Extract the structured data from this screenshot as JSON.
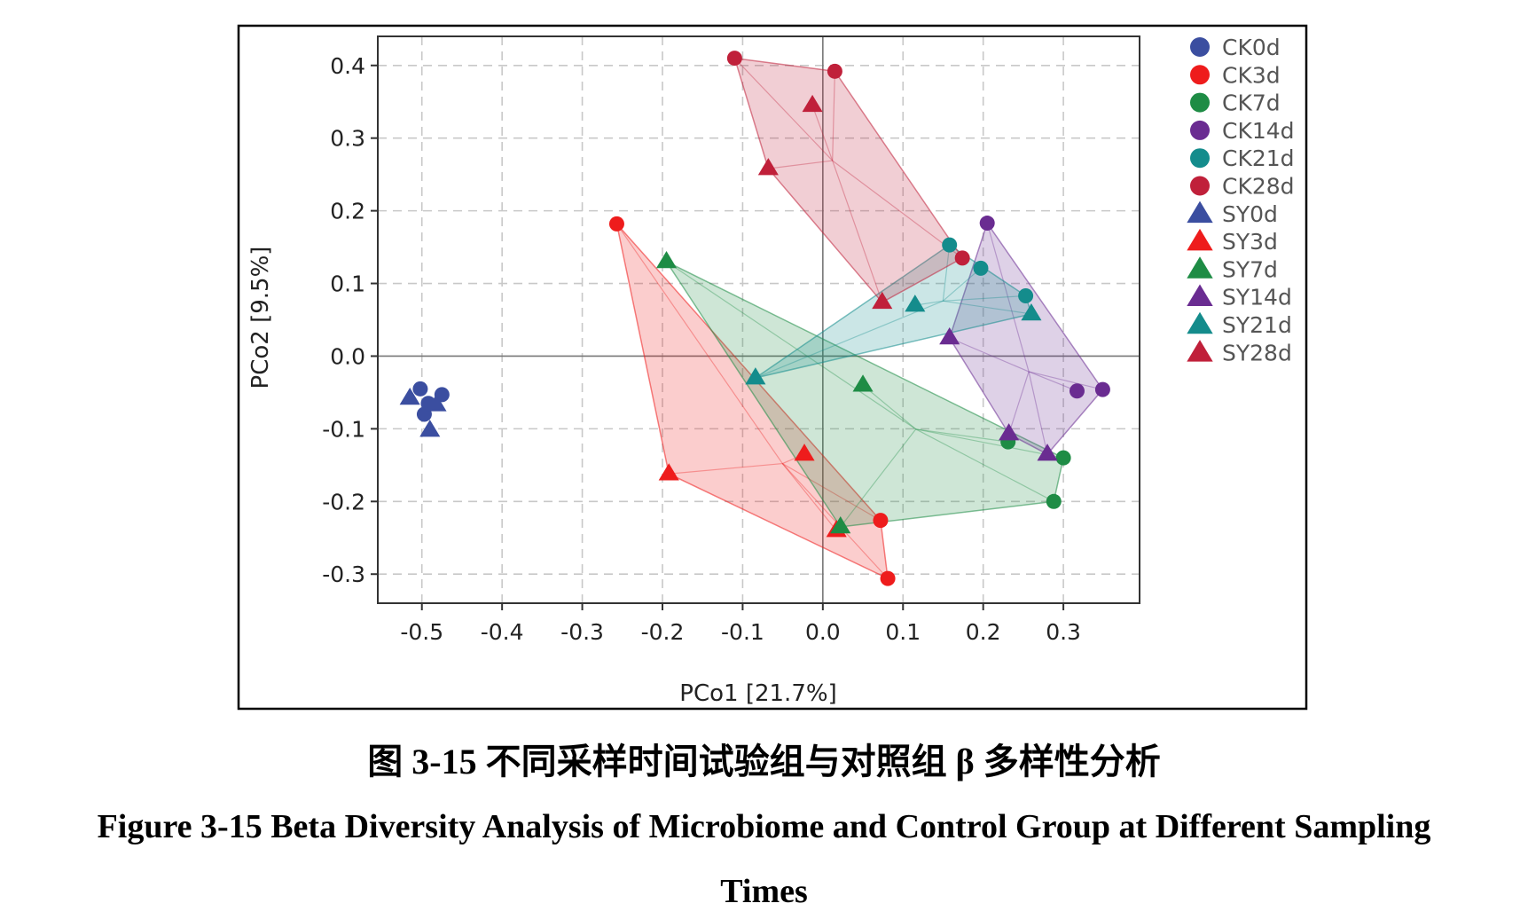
{
  "caption": {
    "cn": "图 3-15  不同采样时间试验组与对照组 β 多样性分析",
    "en_line1": "Figure 3-15 Beta Diversity Analysis of Microbiome and Control Group at Different Sampling",
    "en_line2": "Times"
  },
  "chart_data": {
    "type": "scatter",
    "xlabel": "PCo1 [21.7%]",
    "ylabel": "PCo2 [9.5%]",
    "xlim": [
      -0.555,
      0.395
    ],
    "ylim": [
      -0.34,
      0.44
    ],
    "xticks": [
      -0.5,
      -0.4,
      -0.3,
      -0.2,
      -0.1,
      0.0,
      0.1,
      0.2,
      0.3
    ],
    "xtick_labels": [
      "-0.5",
      "-0.4",
      "-0.3",
      "-0.2",
      "-0.1",
      "0.0",
      "0.1",
      "0.2",
      "0.3"
    ],
    "yticks": [
      -0.3,
      -0.2,
      -0.1,
      0.0,
      0.1,
      0.2,
      0.3,
      0.4
    ],
    "ytick_labels": [
      "-0.3",
      "-0.2",
      "-0.1",
      "0.0",
      "0.1",
      "0.2",
      "0.3",
      "0.4"
    ],
    "grid": true,
    "zero_lines": true,
    "legend_position": "right",
    "series": [
      {
        "name": "CK0d",
        "marker": "circle",
        "color": "#3b4ea0",
        "points": [
          [
            -0.502,
            -0.045
          ],
          [
            -0.475,
            -0.053
          ],
          [
            -0.492,
            -0.065
          ],
          [
            -0.497,
            -0.08
          ]
        ]
      },
      {
        "name": "CK3d",
        "marker": "circle",
        "color": "#ee1c1c",
        "points": [
          [
            -0.257,
            0.182
          ],
          [
            0.072,
            -0.226
          ],
          [
            0.081,
            -0.306
          ]
        ]
      },
      {
        "name": "CK7d",
        "marker": "circle",
        "color": "#1e8c45",
        "points": [
          [
            0.231,
            -0.118
          ],
          [
            0.3,
            -0.14
          ],
          [
            0.288,
            -0.2
          ]
        ]
      },
      {
        "name": "CK14d",
        "marker": "circle",
        "color": "#6a2c91",
        "points": [
          [
            0.205,
            0.183
          ],
          [
            0.317,
            -0.048
          ],
          [
            0.349,
            -0.046
          ]
        ]
      },
      {
        "name": "CK21d",
        "marker": "circle",
        "color": "#148c8c",
        "points": [
          [
            0.158,
            0.153
          ],
          [
            0.197,
            0.121
          ],
          [
            0.253,
            0.083
          ]
        ]
      },
      {
        "name": "CK28d",
        "marker": "circle",
        "color": "#c0203a",
        "points": [
          [
            -0.11,
            0.41
          ],
          [
            0.015,
            0.392
          ],
          [
            0.174,
            0.135
          ]
        ]
      },
      {
        "name": "SY0d",
        "marker": "triangle",
        "color": "#3b4ea0",
        "points": [
          [
            -0.515,
            -0.058
          ],
          [
            -0.482,
            -0.067
          ],
          [
            -0.49,
            -0.102
          ]
        ]
      },
      {
        "name": "SY3d",
        "marker": "triangle",
        "color": "#ee1c1c",
        "points": [
          [
            -0.192,
            -0.162
          ],
          [
            -0.023,
            -0.135
          ],
          [
            0.017,
            -0.24
          ]
        ]
      },
      {
        "name": "SY7d",
        "marker": "triangle",
        "color": "#1e8c45",
        "points": [
          [
            -0.195,
            0.13
          ],
          [
            0.05,
            -0.04
          ],
          [
            0.022,
            -0.235
          ]
        ]
      },
      {
        "name": "SY14d",
        "marker": "triangle",
        "color": "#6a2c91",
        "points": [
          [
            0.158,
            0.025
          ],
          [
            0.232,
            -0.107
          ],
          [
            0.28,
            -0.135
          ]
        ]
      },
      {
        "name": "SY21d",
        "marker": "triangle",
        "color": "#148c8c",
        "points": [
          [
            -0.084,
            -0.03
          ],
          [
            0.115,
            0.07
          ],
          [
            0.26,
            0.058
          ]
        ]
      },
      {
        "name": "SY28d",
        "marker": "triangle",
        "color": "#c0203a",
        "points": [
          [
            -0.013,
            0.345
          ],
          [
            -0.068,
            0.258
          ],
          [
            0.074,
            0.074
          ]
        ]
      }
    ]
  }
}
